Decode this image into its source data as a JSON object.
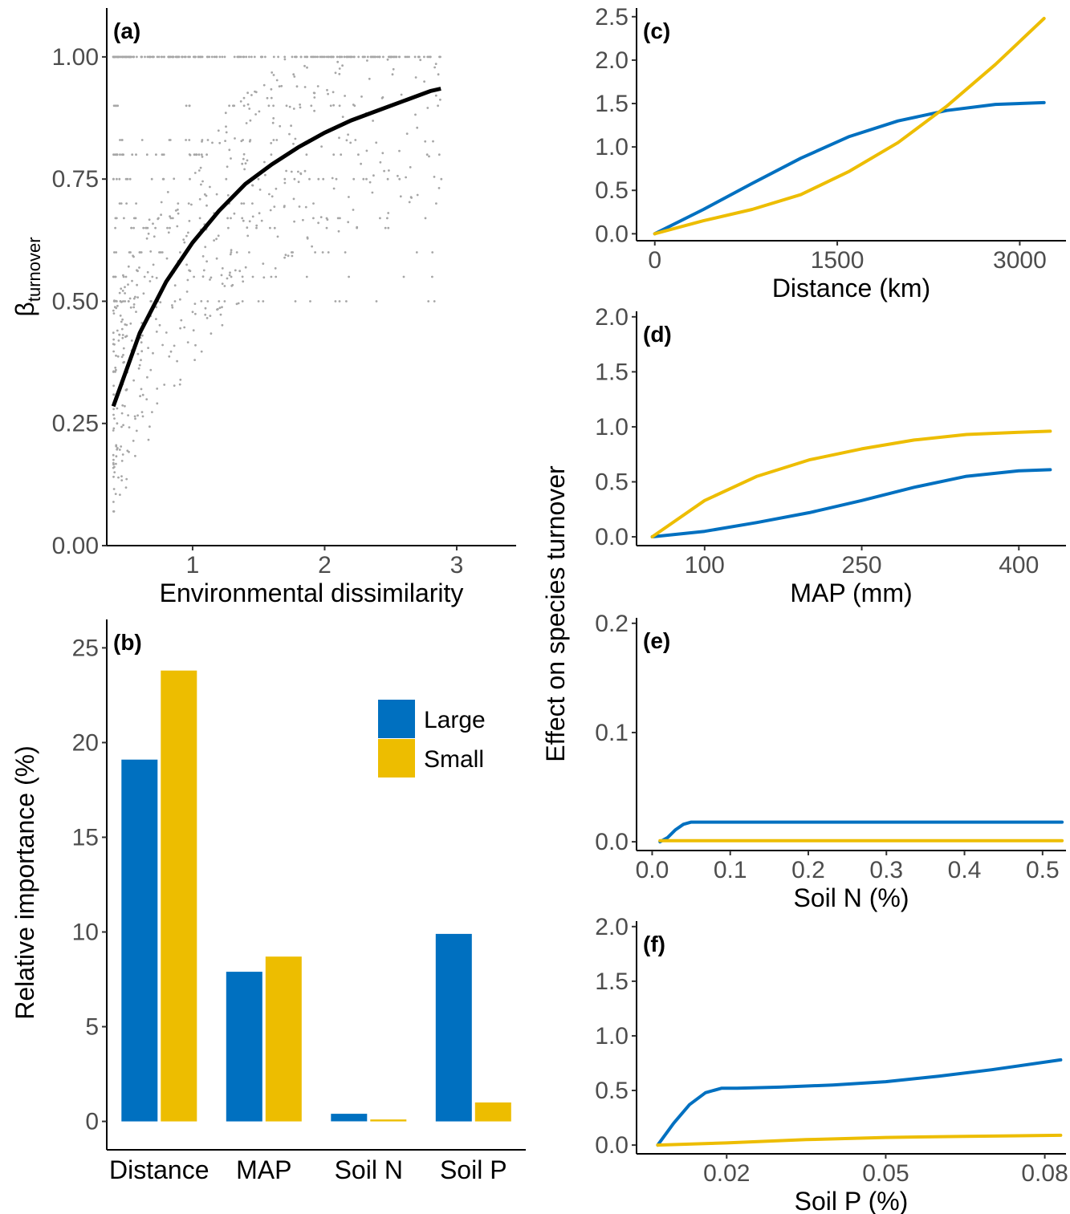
{
  "colors": {
    "large": "#0070C0",
    "small": "#EDBD00",
    "points": "#a6a6a6",
    "fit": "#000000"
  },
  "shared_ylabel": "Effect on species turnover",
  "chart_data": [
    {
      "id": "a",
      "type": "scatter",
      "panel_label": "(a)",
      "xlabel": "Environmental dissimilarity",
      "ylabel_main": "β",
      "ylabel_sub": "turnover",
      "xlim": [
        0.35,
        3.45
      ],
      "ylim": [
        0,
        1.1
      ],
      "xticks": [
        1,
        2,
        3
      ],
      "xtick_labels": [
        "1",
        "2",
        "3"
      ],
      "yticks": [
        0,
        0.25,
        0.5,
        0.75,
        1.0
      ],
      "ytick_labels": [
        "0.00",
        "0.25",
        "0.50",
        "0.75",
        "1.00"
      ],
      "grid": false,
      "fit_curve": {
        "x": [
          0.4,
          0.6,
          0.8,
          1.0,
          1.2,
          1.4,
          1.6,
          1.8,
          2.0,
          2.2,
          2.4,
          2.6,
          2.8,
          2.88
        ],
        "y": [
          0.285,
          0.435,
          0.54,
          0.62,
          0.685,
          0.74,
          0.78,
          0.815,
          0.845,
          0.87,
          0.89,
          0.91,
          0.93,
          0.935
        ]
      },
      "points_note_values": {
        "x_range": [
          0.4,
          2.9
        ],
        "y_range": [
          0.07,
          1.0
        ]
      }
    },
    {
      "id": "b",
      "type": "bar",
      "panel_label": "(b)",
      "categories": [
        "Distance",
        "MAP",
        "Soil N",
        "Soil P"
      ],
      "ylabel": "Relative importance (%)",
      "ylim": [
        -1.5,
        26.5
      ],
      "yticks": [
        0,
        5,
        10,
        15,
        20,
        25
      ],
      "ytick_labels": [
        "0",
        "5",
        "10",
        "15",
        "20",
        "25"
      ],
      "series": [
        {
          "name": "Large",
          "values": [
            19.1,
            7.9,
            0.4,
            9.9
          ]
        },
        {
          "name": "Small",
          "values": [
            23.8,
            8.7,
            0.1,
            1.0
          ]
        }
      ],
      "legend": "top-right",
      "grid": false
    },
    {
      "id": "c",
      "type": "line",
      "panel_label": "(c)",
      "xlabel": "Distance (km)",
      "xlim": [
        -150,
        3380
      ],
      "ylim": [
        -0.08,
        2.6
      ],
      "xticks": [
        0,
        1500,
        3000
      ],
      "xtick_labels": [
        "0",
        "1500",
        "3000"
      ],
      "yticks": [
        0,
        0.5,
        1.0,
        1.5,
        2.0,
        2.5
      ],
      "ytick_labels": [
        "0.0",
        "0.5",
        "1.0",
        "1.5",
        "2.0",
        "2.5"
      ],
      "series": [
        {
          "name": "Large",
          "x": [
            0,
            400,
            800,
            1200,
            1600,
            2000,
            2400,
            2800,
            3200
          ],
          "y": [
            0,
            0.28,
            0.58,
            0.87,
            1.12,
            1.3,
            1.42,
            1.49,
            1.51
          ]
        },
        {
          "name": "Small",
          "x": [
            0,
            400,
            800,
            1200,
            1600,
            2000,
            2400,
            2800,
            3200
          ],
          "y": [
            0,
            0.15,
            0.28,
            0.45,
            0.72,
            1.05,
            1.47,
            1.95,
            2.48
          ]
        }
      ],
      "grid": false
    },
    {
      "id": "d",
      "type": "line",
      "panel_label": "(d)",
      "xlabel": "MAP (mm)",
      "xlim": [
        35,
        445
      ],
      "ylim": [
        -0.08,
        2.05
      ],
      "xticks": [
        100,
        250,
        400
      ],
      "xtick_labels": [
        "100",
        "250",
        "400"
      ],
      "yticks": [
        0,
        0.5,
        1.0,
        1.5,
        2.0
      ],
      "ytick_labels": [
        "0.0",
        "0.5",
        "1.0",
        "1.5",
        "2.0"
      ],
      "series": [
        {
          "name": "Large",
          "x": [
            50,
            100,
            150,
            200,
            250,
            300,
            350,
            400,
            430
          ],
          "y": [
            0,
            0.05,
            0.13,
            0.22,
            0.33,
            0.45,
            0.55,
            0.6,
            0.61
          ]
        },
        {
          "name": "Small",
          "x": [
            50,
            100,
            150,
            200,
            250,
            300,
            350,
            400,
            430
          ],
          "y": [
            0,
            0.33,
            0.55,
            0.7,
            0.8,
            0.88,
            0.93,
            0.95,
            0.96
          ]
        }
      ],
      "grid": false
    },
    {
      "id": "e",
      "type": "line",
      "panel_label": "(e)",
      "xlabel": "Soil N (%)",
      "xlim": [
        -0.02,
        0.53
      ],
      "ylim": [
        -0.008,
        0.205
      ],
      "xticks": [
        0.0,
        0.1,
        0.2,
        0.3,
        0.4,
        0.5
      ],
      "xtick_labels": [
        "0.0",
        "0.1",
        "0.2",
        "0.3",
        "0.4",
        "0.5"
      ],
      "yticks": [
        0,
        0.1,
        0.2
      ],
      "ytick_labels": [
        "0.0",
        "0.1",
        "0.2"
      ],
      "series": [
        {
          "name": "Large",
          "x": [
            0.01,
            0.02,
            0.03,
            0.04,
            0.05,
            0.06,
            0.2,
            0.4,
            0.525
          ],
          "y": [
            0,
            0.004,
            0.011,
            0.016,
            0.018,
            0.018,
            0.018,
            0.018,
            0.018
          ]
        },
        {
          "name": "Small",
          "x": [
            0.01,
            0.2,
            0.4,
            0.525
          ],
          "y": [
            0.001,
            0.001,
            0.001,
            0.001
          ]
        }
      ],
      "grid": false
    },
    {
      "id": "f",
      "type": "line",
      "panel_label": "(f)",
      "xlabel": "Soil P (%)",
      "xlim": [
        0.003,
        0.084
      ],
      "ylim": [
        -0.08,
        2.05
      ],
      "xticks": [
        0.02,
        0.05,
        0.08
      ],
      "xtick_labels": [
        "0.02",
        "0.05",
        "0.08"
      ],
      "yticks": [
        0,
        0.5,
        1.0,
        1.5,
        2.0
      ],
      "ytick_labels": [
        "0.0",
        "0.5",
        "1.0",
        "1.5",
        "2.0"
      ],
      "series": [
        {
          "name": "Large",
          "x": [
            0.007,
            0.01,
            0.013,
            0.016,
            0.019,
            0.022,
            0.03,
            0.04,
            0.05,
            0.06,
            0.07,
            0.083
          ],
          "y": [
            0,
            0.2,
            0.37,
            0.48,
            0.52,
            0.52,
            0.53,
            0.55,
            0.58,
            0.63,
            0.69,
            0.78
          ]
        },
        {
          "name": "Small",
          "x": [
            0.007,
            0.02,
            0.035,
            0.05,
            0.065,
            0.083
          ],
          "y": [
            0,
            0.02,
            0.05,
            0.07,
            0.08,
            0.09
          ]
        }
      ],
      "grid": false
    }
  ]
}
